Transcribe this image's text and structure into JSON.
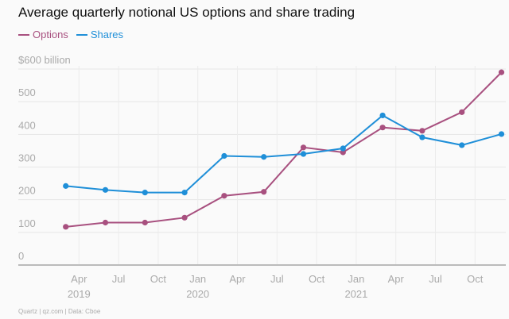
{
  "chart_data": {
    "type": "line",
    "title": "Average quarterly notional US options and share trading",
    "ylabel": "",
    "xlabel": "",
    "ylim": [
      0,
      600
    ],
    "yticks": [
      "0",
      "100",
      "200",
      "300",
      "400",
      "500",
      "$600 billion"
    ],
    "ytick_values": [
      0,
      100,
      200,
      300,
      400,
      500,
      600
    ],
    "x": [
      "Q1 2019",
      "Q2 2019",
      "Q3 2019",
      "Q4 2019",
      "Q1 2020",
      "Q2 2020",
      "Q3 2020",
      "Q4 2020",
      "Q1 2021",
      "Q2 2021",
      "Q3 2021",
      "Q4 2021"
    ],
    "xtick_labels": [
      "Apr",
      "Jul",
      "Oct",
      "Jan",
      "Apr",
      "Jul",
      "Oct",
      "Jan",
      "Apr",
      "Jul",
      "Oct"
    ],
    "xtick_years": [
      {
        "label": "2019",
        "at": 0
      },
      {
        "label": "2020",
        "at": 3
      },
      {
        "label": "2021",
        "at": 7
      }
    ],
    "grid": true,
    "legend": "top-left",
    "series": [
      {
        "name": "Options",
        "color": "#a8507f",
        "values": [
          117,
          130,
          130,
          145,
          212,
          224,
          360,
          345,
          421,
          411,
          468,
          590
        ]
      },
      {
        "name": "Shares",
        "color": "#1f8fd8",
        "values": [
          242,
          230,
          222,
          222,
          334,
          331,
          340,
          357,
          458,
          391,
          367,
          401
        ]
      }
    ]
  },
  "source": "Quartz | qz.com | Data: Cboe"
}
